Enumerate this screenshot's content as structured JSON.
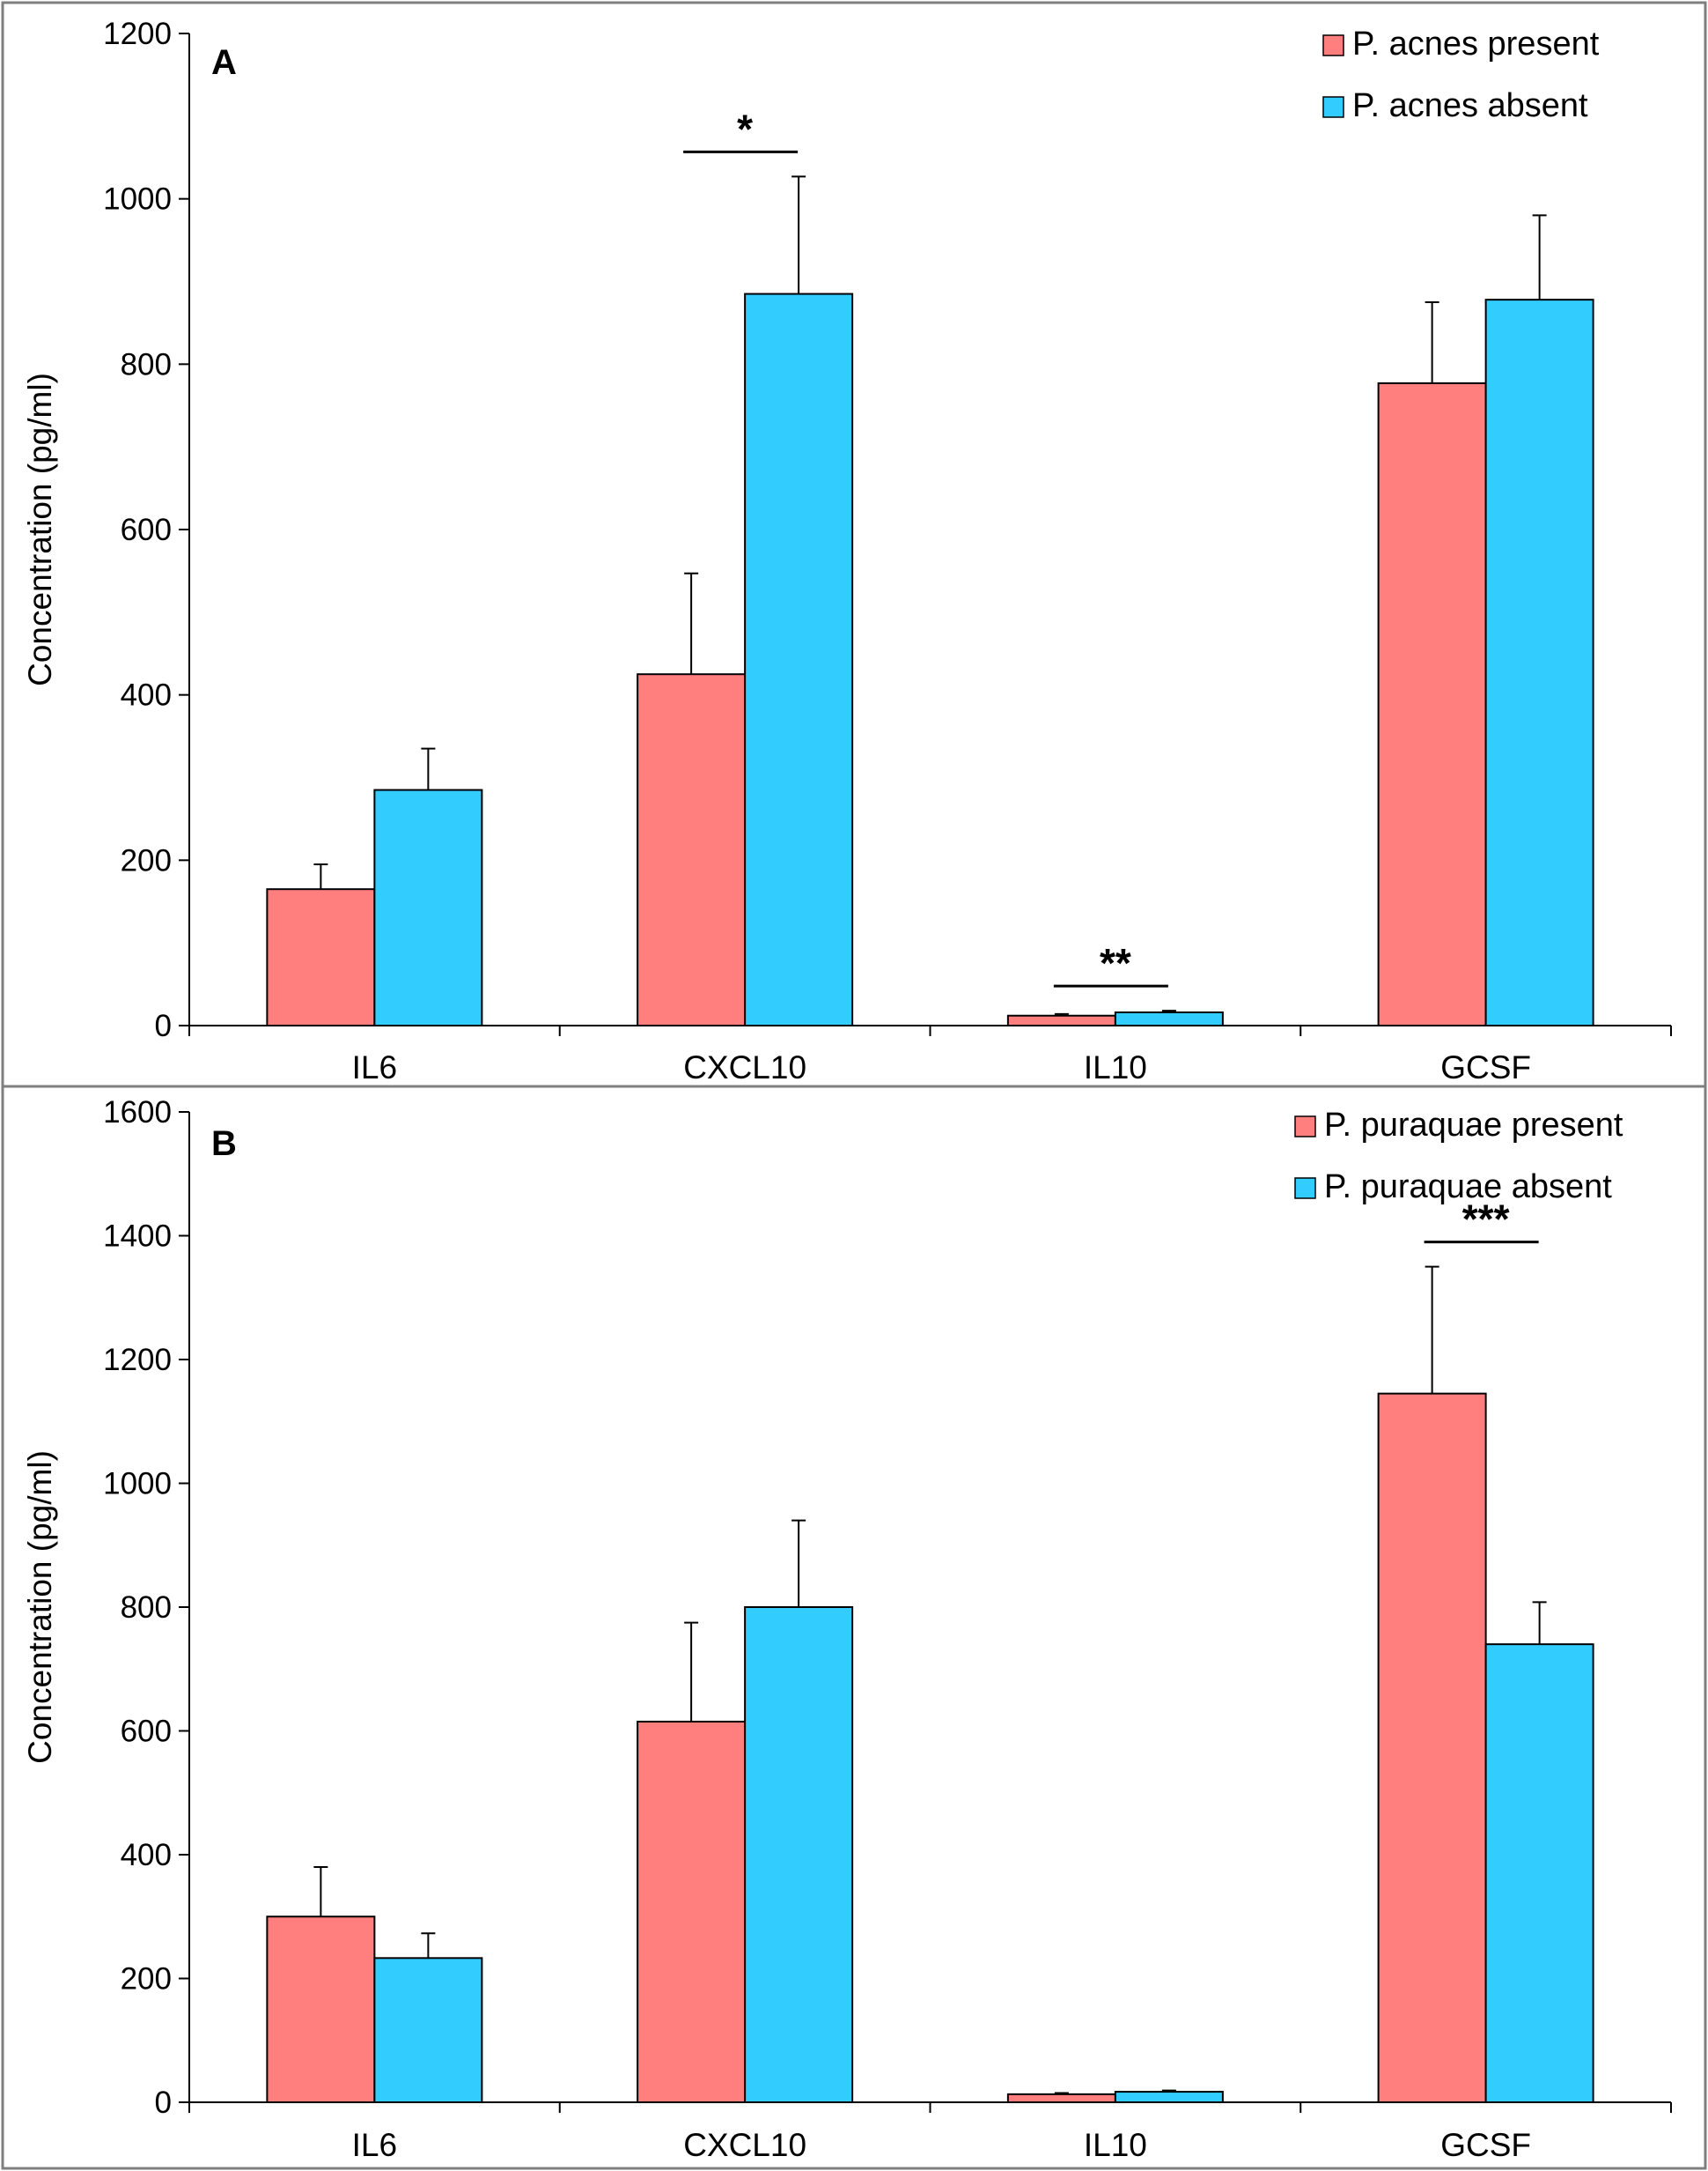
{
  "figure": {
    "colors": {
      "present": "#ff7f7f",
      "absent": "#33ccff",
      "axis": "#000000",
      "frame": "#7f7f7f"
    }
  },
  "chart_data": [
    {
      "type": "bar",
      "panel": "A",
      "categories": [
        "IL6",
        "CXCL10",
        "IL10",
        "GCSF"
      ],
      "series": [
        {
          "name": "P. acnes present",
          "values": [
            165,
            425,
            12,
            777
          ],
          "errors": [
            30,
            122,
            2,
            98
          ]
        },
        {
          "name": "P. acnes absent",
          "values": [
            285,
            885,
            16,
            878
          ],
          "errors": [
            50,
            142,
            2,
            102
          ]
        }
      ],
      "significance": [
        {
          "category": "CXCL10",
          "label": "*"
        },
        {
          "category": "IL10",
          "label": "**"
        }
      ],
      "title": "",
      "xlabel": "",
      "ylabel": "Concentration (pg/ml)",
      "ylim": [
        0,
        1200
      ],
      "yticks": [
        "0",
        "200",
        "400",
        "600",
        "800",
        "1000",
        "1200"
      ],
      "legend": "top-right"
    },
    {
      "type": "bar",
      "panel": "B",
      "categories": [
        "IL6",
        "CXCL10",
        "IL10",
        "GCSF"
      ],
      "series": [
        {
          "name": "P. puraquae present",
          "values": [
            300,
            615,
            13,
            1145
          ],
          "errors": [
            80,
            160,
            2,
            205
          ]
        },
        {
          "name": "P. puraquae absent",
          "values": [
            233,
            800,
            17,
            740
          ],
          "errors": [
            40,
            140,
            2,
            68
          ]
        }
      ],
      "significance": [
        {
          "category": "GCSF",
          "label": "***"
        }
      ],
      "title": "",
      "xlabel": "",
      "ylabel": "Concentration (pg/ml)",
      "ylim": [
        0,
        1600
      ],
      "yticks": [
        "0",
        "200",
        "400",
        "600",
        "800",
        "1000",
        "1200",
        "1400",
        "1600"
      ],
      "legend": "top-right"
    }
  ]
}
